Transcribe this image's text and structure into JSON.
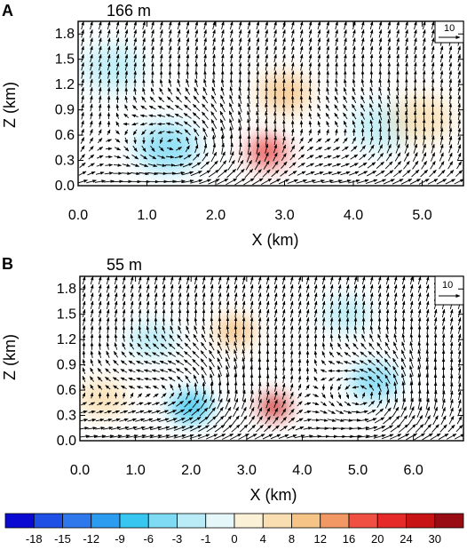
{
  "chart_data": [
    {
      "panel": "A",
      "type": "vector-field-contour",
      "title": "166 m",
      "xlabel": "X (km)",
      "ylabel": "Z (km)",
      "xlim": [
        0.0,
        5.6
      ],
      "ylim": [
        0.0,
        1.95
      ],
      "xticks": [
        "0.0",
        "1.0",
        "2.0",
        "3.0",
        "4.0",
        "5.0"
      ],
      "xtick_values": [
        0,
        1,
        2,
        3,
        4,
        5
      ],
      "yticks": [
        "0.0",
        "0.3",
        "0.6",
        "0.9",
        "1.2",
        "1.5",
        "1.8"
      ],
      "ytick_values": [
        0,
        0.3,
        0.6,
        0.9,
        1.2,
        1.5,
        1.8
      ],
      "reference_vector": "10",
      "vortices": [
        {
          "x": 1.65,
          "z": 0.45,
          "sense": "ccw",
          "strength": 1.0
        },
        {
          "x": 4.15,
          "z": 0.55,
          "sense": "ccw",
          "strength": 0.55
        }
      ],
      "shading": [
        {
          "x": 1.3,
          "z": 0.45,
          "value": -6
        },
        {
          "x": 0.5,
          "z": 1.4,
          "value": -3
        },
        {
          "x": 2.75,
          "z": 0.4,
          "value": 20
        },
        {
          "x": 3.0,
          "z": 1.1,
          "value": 8
        },
        {
          "x": 4.4,
          "z": 0.7,
          "value": -3
        },
        {
          "x": 5.0,
          "z": 0.8,
          "value": 4
        }
      ]
    },
    {
      "panel": "B",
      "type": "vector-field-contour",
      "title": "55 m",
      "xlabel": "X (km)",
      "ylabel": "Z (km)",
      "xlim": [
        0.0,
        6.9
      ],
      "ylim": [
        0.0,
        1.95
      ],
      "xticks": [
        "0.0",
        "1.0",
        "2.0",
        "3.0",
        "4.0",
        "5.0",
        "6.0"
      ],
      "xtick_values": [
        0,
        1,
        2,
        3,
        4,
        5,
        6
      ],
      "yticks": [
        "0.0",
        "0.3",
        "0.6",
        "0.9",
        "1.2",
        "1.5",
        "1.8"
      ],
      "ytick_values": [
        0,
        0.3,
        0.6,
        0.9,
        1.2,
        1.5,
        1.8
      ],
      "reference_vector": "10",
      "vortices": [
        {
          "x": 1.7,
          "z": 0.55,
          "sense": "ccw",
          "strength": 0.6
        },
        {
          "x": 2.3,
          "z": 0.6,
          "sense": "ccw",
          "strength": 0.5
        },
        {
          "x": 5.3,
          "z": 0.5,
          "sense": "ccw",
          "strength": 1.0
        },
        {
          "x": 0.6,
          "z": 0.4,
          "sense": "ccw",
          "strength": 0.4
        }
      ],
      "shading": [
        {
          "x": 3.5,
          "z": 0.4,
          "value": 24
        },
        {
          "x": 2.8,
          "z": 1.3,
          "value": 8
        },
        {
          "x": 5.3,
          "z": 0.7,
          "value": -6
        },
        {
          "x": 4.8,
          "z": 1.5,
          "value": -3
        },
        {
          "x": 1.3,
          "z": 1.2,
          "value": -3
        },
        {
          "x": 0.4,
          "z": 0.5,
          "value": 4
        },
        {
          "x": 2.0,
          "z": 0.4,
          "value": -9
        }
      ]
    }
  ],
  "colorbar": {
    "labels": [
      "-18",
      "-15",
      "-12",
      "-9",
      "-6",
      "-3",
      "-1",
      "0",
      "4",
      "8",
      "12",
      "16",
      "20",
      "24",
      "30"
    ],
    "colors": [
      "#0a0ad2",
      "#1e50e6",
      "#2e78eb",
      "#2c9cf0",
      "#36c6ef",
      "#7fdbf4",
      "#b9ecf6",
      "#e6f7fa",
      "#fbf1d6",
      "#f8deb0",
      "#f6c487",
      "#f29865",
      "#ef5042",
      "#e62a2a",
      "#c81414",
      "#9a0c14"
    ]
  }
}
